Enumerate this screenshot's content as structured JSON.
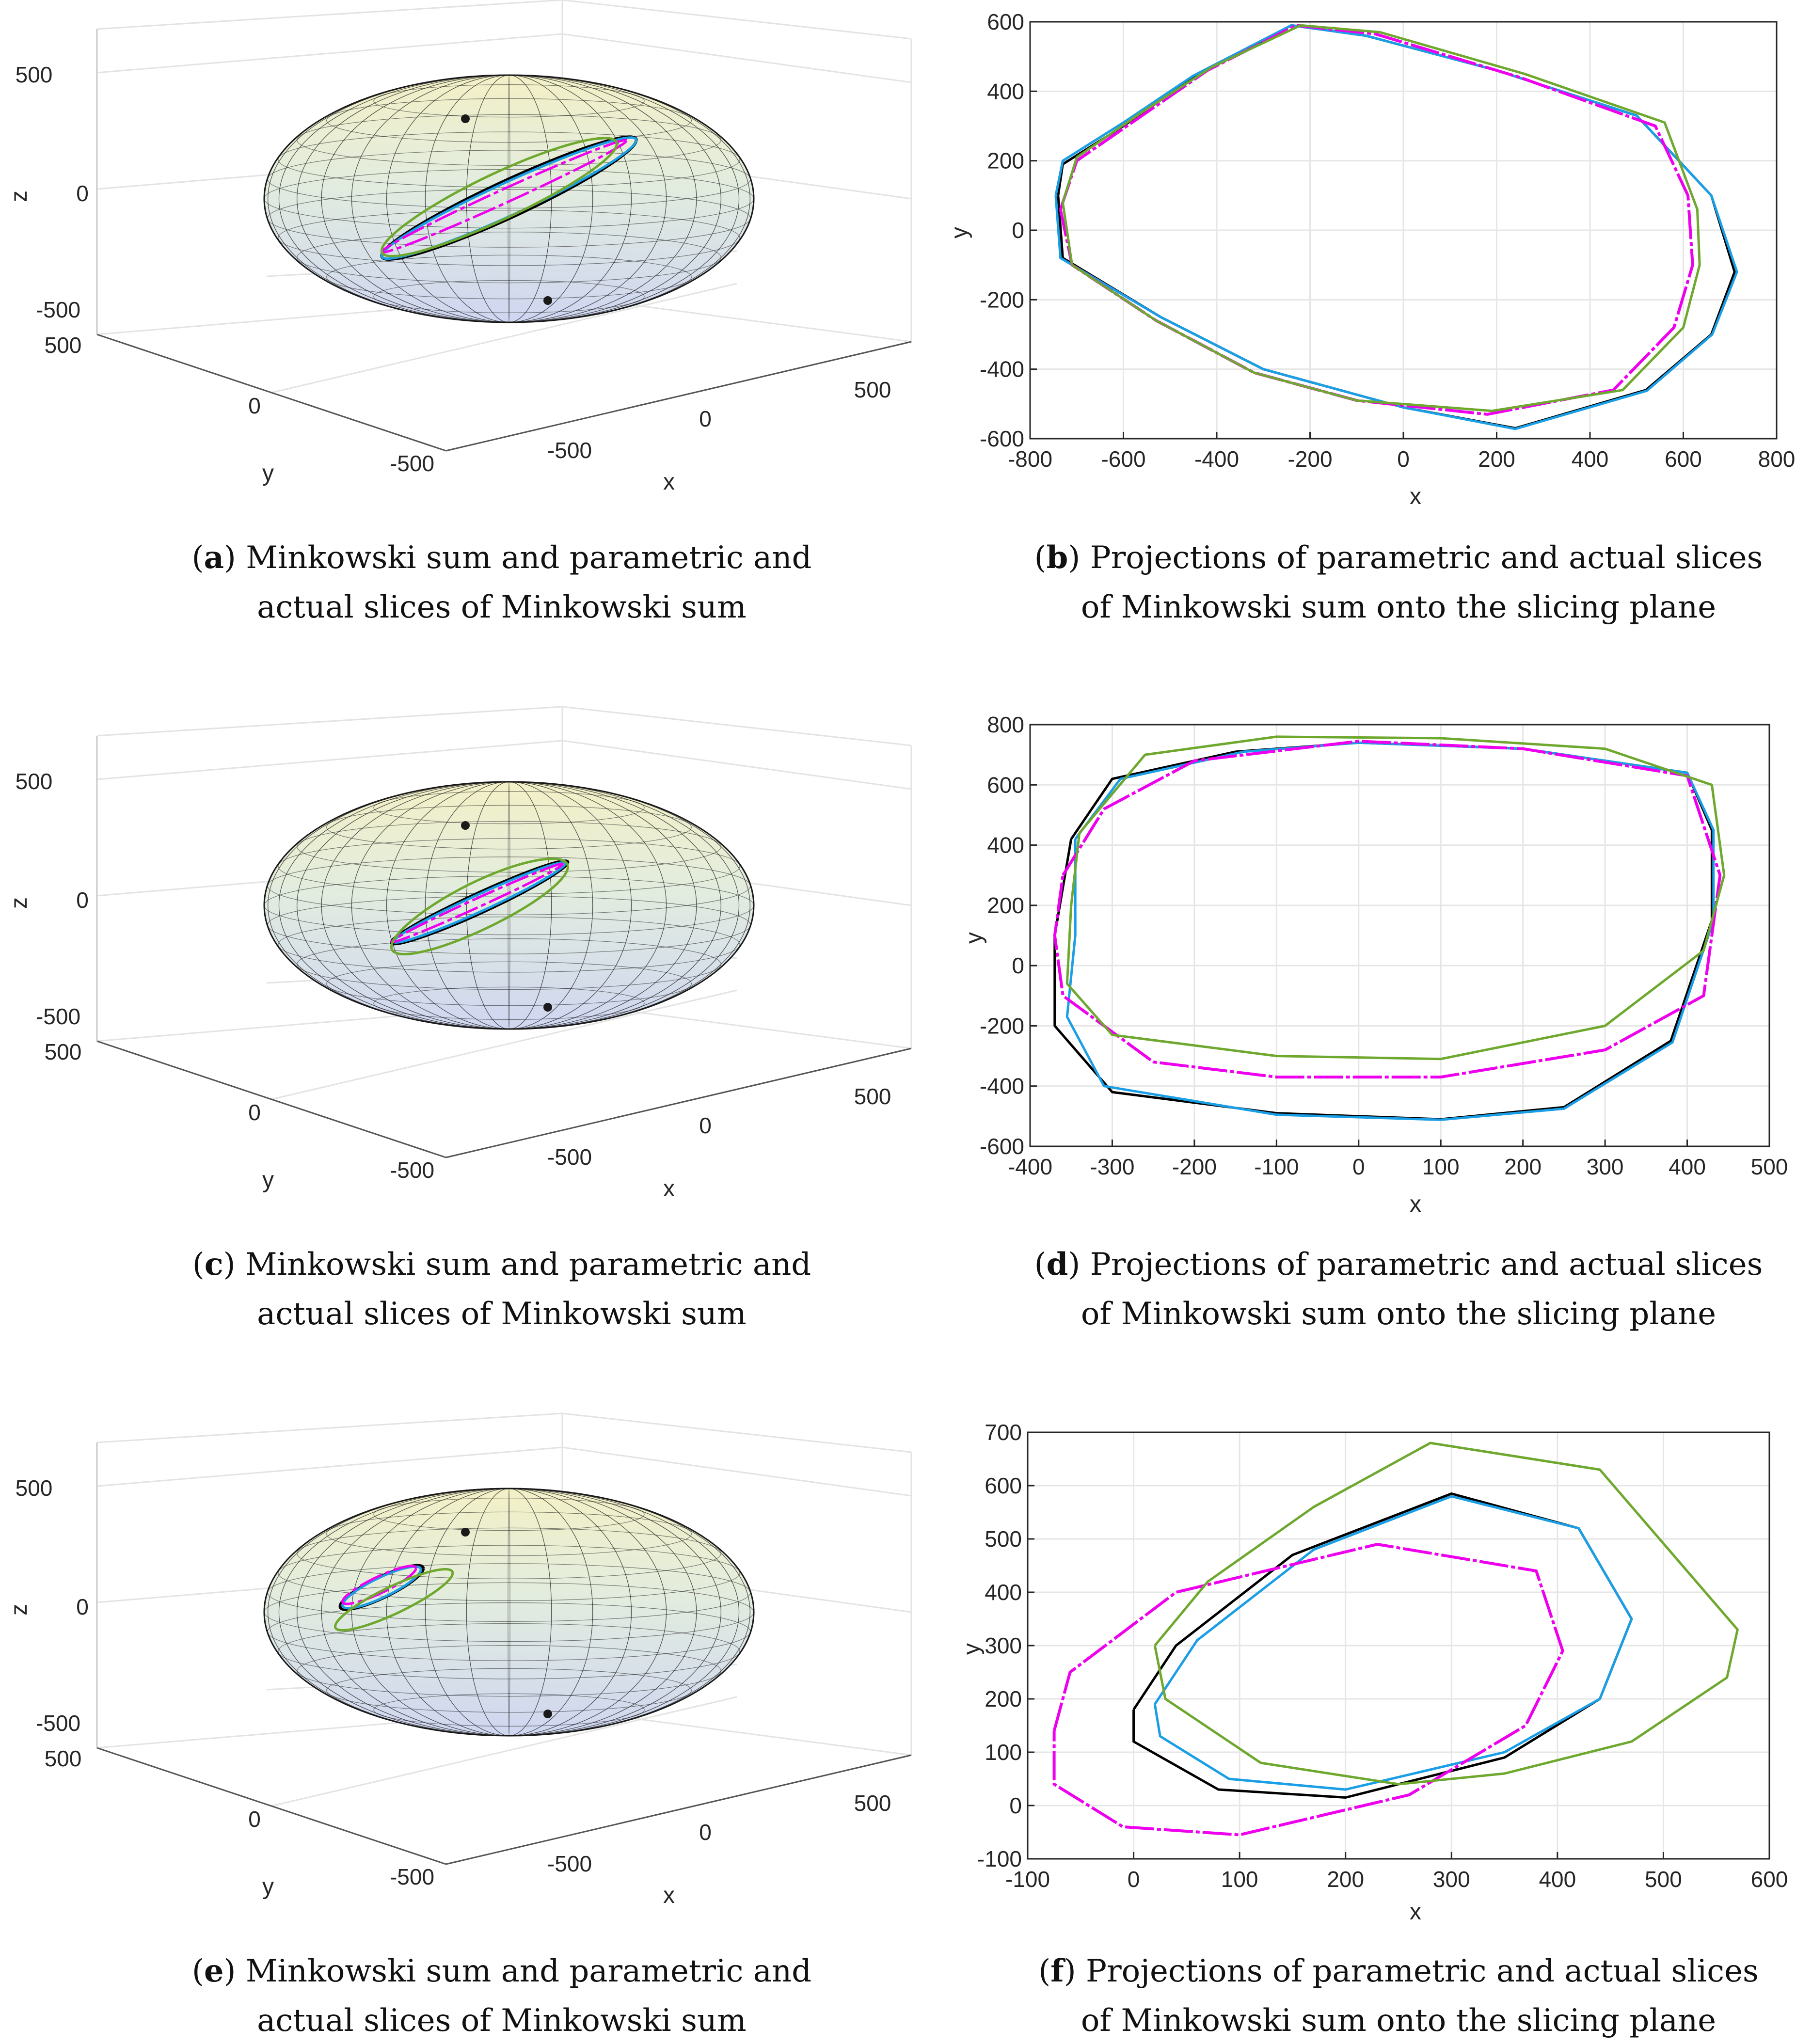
{
  "colors": {
    "black_slice": "#000000",
    "blue_slice": "#1a9ee6",
    "magenta_slice": "#ee00ee",
    "green_slice": "#6fa82e",
    "grid": "#e6e6e6",
    "wire": "#1a1a1a"
  },
  "captions": [
    {
      "letter": "a",
      "line1": "Minkowski sum and parametric and",
      "line2": "actual slices of Minkowski sum"
    },
    {
      "letter": "b",
      "line1": "Projections of parametric and actual slices",
      "line2": "of Minkowski sum onto the slicing plane"
    },
    {
      "letter": "c",
      "line1": "Minkowski sum and parametric and",
      "line2": "actual slices of Minkowski sum"
    },
    {
      "letter": "d",
      "line1": "Projections of parametric and actual slices",
      "line2": "of Minkowski sum onto the slicing plane"
    },
    {
      "letter": "e",
      "line1": "Minkowski sum and parametric and",
      "line2": "actual slices of Minkowski sum"
    },
    {
      "letter": "f",
      "line1": "Projections of parametric and actual slices",
      "line2": "of Minkowski sum onto the slicing plane"
    }
  ],
  "chart_data": [
    {
      "panel": "a",
      "type": "3d-surface",
      "xlabel": "x",
      "ylabel": "y",
      "zlabel": "z",
      "xticks": [
        "-500",
        "0",
        "500"
      ],
      "yticks": [
        "-500",
        "0",
        "500"
      ],
      "zticks": [
        "-500",
        "0",
        "500"
      ],
      "slices": [
        {
          "name": "black",
          "cx": 0.0,
          "cz": 0.0,
          "ax": 0.52,
          "ay": 0.62,
          "tilt": 0.26,
          "skew": 0.1
        },
        {
          "name": "blue",
          "cx": 0.0,
          "cz": 0.0,
          "ax": 0.52,
          "ay": 0.6,
          "tilt": 0.24,
          "skew": 0.1
        },
        {
          "name": "magenta",
          "cx": -0.02,
          "cz": 0.02,
          "ax": 0.5,
          "ay": 0.6,
          "tilt": 0.1,
          "skew": 0.0
        },
        {
          "name": "green",
          "cx": -0.04,
          "cz": 0.02,
          "ax": 0.48,
          "ay": 0.6,
          "tilt": 0.34,
          "skew": -0.1
        }
      ]
    },
    {
      "panel": "b",
      "type": "line",
      "xlabel": "x",
      "ylabel": "y",
      "xlim": [
        -800,
        800
      ],
      "ylim": [
        -600,
        600
      ],
      "xticks": [
        -800,
        -600,
        -400,
        -200,
        0,
        200,
        400,
        600,
        800
      ],
      "yticks": [
        -600,
        -400,
        -200,
        0,
        200,
        400,
        600
      ],
      "series": [
        {
          "name": "black",
          "points": [
            [
              -740,
              100
            ],
            [
              -730,
              190
            ],
            [
              -600,
              300
            ],
            [
              -450,
              440
            ],
            [
              -240,
              590
            ],
            [
              -80,
              560
            ],
            [
              200,
              460
            ],
            [
              500,
              330
            ],
            [
              660,
              100
            ],
            [
              710,
              -120
            ],
            [
              660,
              -300
            ],
            [
              520,
              -460
            ],
            [
              240,
              -570
            ],
            [
              0,
              -510
            ],
            [
              -300,
              -400
            ],
            [
              -520,
              -250
            ],
            [
              -730,
              -80
            ],
            [
              -740,
              100
            ]
          ]
        },
        {
          "name": "blue",
          "points": [
            [
              -745,
              100
            ],
            [
              -730,
              200
            ],
            [
              -600,
              310
            ],
            [
              -450,
              445
            ],
            [
              -240,
              590
            ],
            [
              -80,
              560
            ],
            [
              200,
              460
            ],
            [
              500,
              330
            ],
            [
              660,
              100
            ],
            [
              715,
              -120
            ],
            [
              662,
              -300
            ],
            [
              522,
              -462
            ],
            [
              240,
              -572
            ],
            [
              0,
              -510
            ],
            [
              -300,
              -400
            ],
            [
              -520,
              -250
            ],
            [
              -735,
              -80
            ],
            [
              -745,
              100
            ]
          ]
        },
        {
          "name": "magenta",
          "points": [
            [
              -735,
              60
            ],
            [
              -700,
              200
            ],
            [
              -560,
              330
            ],
            [
              -420,
              460
            ],
            [
              -230,
              590
            ],
            [
              -60,
              565
            ],
            [
              250,
              440
            ],
            [
              540,
              300
            ],
            [
              610,
              100
            ],
            [
              620,
              -100
            ],
            [
              580,
              -280
            ],
            [
              450,
              -460
            ],
            [
              180,
              -530
            ],
            [
              -100,
              -490
            ],
            [
              -320,
              -410
            ],
            [
              -530,
              -260
            ],
            [
              -710,
              -100
            ],
            [
              -735,
              60
            ]
          ]
        },
        {
          "name": "green",
          "points": [
            [
              -730,
              80
            ],
            [
              -700,
              210
            ],
            [
              -560,
              340
            ],
            [
              -410,
              470
            ],
            [
              -220,
              590
            ],
            [
              -50,
              570
            ],
            [
              260,
              450
            ],
            [
              560,
              310
            ],
            [
              630,
              60
            ],
            [
              635,
              -100
            ],
            [
              600,
              -280
            ],
            [
              470,
              -460
            ],
            [
              190,
              -520
            ],
            [
              -100,
              -490
            ],
            [
              -320,
              -410
            ],
            [
              -530,
              -260
            ],
            [
              -710,
              -100
            ],
            [
              -730,
              80
            ]
          ]
        }
      ]
    },
    {
      "panel": "c",
      "type": "3d-surface",
      "xlabel": "x",
      "ylabel": "y",
      "zlabel": "z",
      "xticks": [
        "-500",
        "0",
        "500"
      ],
      "yticks": [
        "-500",
        "0",
        "500"
      ],
      "zticks": [
        "-500",
        "0",
        "500"
      ],
      "slices": [
        {
          "name": "black",
          "cx": -0.12,
          "cz": 0.02,
          "ax": 0.36,
          "ay": 0.48,
          "tilt": 0.18,
          "skew": 0.1
        },
        {
          "name": "blue",
          "cx": -0.12,
          "cz": 0.02,
          "ax": 0.35,
          "ay": 0.46,
          "tilt": 0.16,
          "skew": 0.1
        },
        {
          "name": "magenta",
          "cx": -0.13,
          "cz": 0.02,
          "ax": 0.35,
          "ay": 0.48,
          "tilt": 0.08,
          "skew": 0.0
        },
        {
          "name": "green",
          "cx": -0.12,
          "cz": 0.0,
          "ax": 0.36,
          "ay": 0.5,
          "tilt": 0.42,
          "skew": -0.1
        }
      ]
    },
    {
      "panel": "d",
      "type": "line",
      "xlabel": "x",
      "ylabel": "y",
      "xlim": [
        -400,
        500
      ],
      "ylim": [
        -600,
        800
      ],
      "xticks": [
        -400,
        -300,
        -200,
        -100,
        0,
        100,
        200,
        300,
        400,
        500
      ],
      "yticks": [
        -600,
        -400,
        -200,
        0,
        200,
        400,
        600,
        800
      ],
      "series": [
        {
          "name": "black",
          "points": [
            [
              -350,
              420
            ],
            [
              -300,
              620
            ],
            [
              -150,
              710
            ],
            [
              0,
              740
            ],
            [
              200,
              720
            ],
            [
              400,
              640
            ],
            [
              430,
              450
            ],
            [
              430,
              150
            ],
            [
              380,
              -250
            ],
            [
              250,
              -470
            ],
            [
              100,
              -510
            ],
            [
              -100,
              -490
            ],
            [
              -300,
              -420
            ],
            [
              -370,
              -200
            ],
            [
              -370,
              100
            ],
            [
              -350,
              420
            ]
          ]
        },
        {
          "name": "blue",
          "points": [
            [
              -345,
              420
            ],
            [
              -290,
              620
            ],
            [
              -140,
              710
            ],
            [
              0,
              740
            ],
            [
              200,
              720
            ],
            [
              400,
              640
            ],
            [
              432,
              450
            ],
            [
              432,
              150
            ],
            [
              382,
              -255
            ],
            [
              250,
              -475
            ],
            [
              100,
              -512
            ],
            [
              -100,
              -495
            ],
            [
              -310,
              -400
            ],
            [
              -355,
              -170
            ],
            [
              -345,
              100
            ],
            [
              -345,
              420
            ]
          ]
        },
        {
          "name": "magenta",
          "points": [
            [
              -360,
              300
            ],
            [
              -310,
              520
            ],
            [
              -200,
              680
            ],
            [
              0,
              745
            ],
            [
              200,
              720
            ],
            [
              400,
              630
            ],
            [
              440,
              300
            ],
            [
              420,
              -100
            ],
            [
              300,
              -280
            ],
            [
              100,
              -370
            ],
            [
              -100,
              -370
            ],
            [
              -250,
              -320
            ],
            [
              -360,
              -100
            ],
            [
              -370,
              100
            ],
            [
              -360,
              300
            ]
          ]
        },
        {
          "name": "green",
          "points": [
            [
              -340,
              440
            ],
            [
              -260,
              700
            ],
            [
              -100,
              760
            ],
            [
              100,
              755
            ],
            [
              300,
              720
            ],
            [
              430,
              600
            ],
            [
              445,
              300
            ],
            [
              420,
              50
            ],
            [
              300,
              -200
            ],
            [
              100,
              -310
            ],
            [
              -100,
              -300
            ],
            [
              -300,
              -230
            ],
            [
              -355,
              -60
            ],
            [
              -350,
              200
            ],
            [
              -340,
              440
            ]
          ]
        }
      ]
    },
    {
      "panel": "e",
      "type": "3d-surface",
      "xlabel": "x",
      "ylabel": "y",
      "zlabel": "z",
      "xticks": [
        "-500",
        "0",
        "500"
      ],
      "yticks": [
        "-500",
        "0",
        "500"
      ],
      "zticks": [
        "-500",
        "0",
        "500"
      ],
      "slices": [
        {
          "name": "black",
          "cx": -0.52,
          "cz": 0.2,
          "ax": 0.17,
          "ay": 0.26,
          "tilt": 0.35,
          "skew": 0.0
        },
        {
          "name": "blue",
          "cx": -0.52,
          "cz": 0.2,
          "ax": 0.16,
          "ay": 0.25,
          "tilt": 0.35,
          "skew": 0.0
        },
        {
          "name": "magenta",
          "cx": -0.53,
          "cz": 0.22,
          "ax": 0.15,
          "ay": 0.26,
          "tilt": 0.28,
          "skew": 0.0
        },
        {
          "name": "green",
          "cx": -0.47,
          "cz": 0.1,
          "ax": 0.24,
          "ay": 0.3,
          "tilt": 0.4,
          "skew": 0.0
        }
      ]
    },
    {
      "panel": "f",
      "type": "line",
      "xlabel": "x",
      "ylabel": "y",
      "xlim": [
        -100,
        600
      ],
      "ylim": [
        -100,
        700
      ],
      "xticks": [
        -100,
        0,
        100,
        200,
        300,
        400,
        500,
        600
      ],
      "yticks": [
        -100,
        0,
        100,
        200,
        300,
        400,
        500,
        600,
        700
      ],
      "series": [
        {
          "name": "black",
          "points": [
            [
              0,
              180
            ],
            [
              40,
              300
            ],
            [
              150,
              470
            ],
            [
              300,
              585
            ],
            [
              420,
              520
            ],
            [
              470,
              350
            ],
            [
              440,
              200
            ],
            [
              350,
              90
            ],
            [
              200,
              15
            ],
            [
              80,
              30
            ],
            [
              0,
              120
            ],
            [
              0,
              180
            ]
          ]
        },
        {
          "name": "blue",
          "points": [
            [
              20,
              190
            ],
            [
              60,
              310
            ],
            [
              170,
              480
            ],
            [
              300,
              580
            ],
            [
              420,
              520
            ],
            [
              470,
              350
            ],
            [
              440,
              200
            ],
            [
              350,
              100
            ],
            [
              200,
              30
            ],
            [
              90,
              50
            ],
            [
              25,
              130
            ],
            [
              20,
              190
            ]
          ]
        },
        {
          "name": "magenta",
          "points": [
            [
              -75,
              140
            ],
            [
              -60,
              250
            ],
            [
              40,
              400
            ],
            [
              230,
              490
            ],
            [
              380,
              440
            ],
            [
              405,
              290
            ],
            [
              370,
              150
            ],
            [
              260,
              20
            ],
            [
              100,
              -55
            ],
            [
              -10,
              -40
            ],
            [
              -75,
              40
            ],
            [
              -75,
              140
            ]
          ]
        },
        {
          "name": "green",
          "points": [
            [
              20,
              300
            ],
            [
              70,
              420
            ],
            [
              170,
              560
            ],
            [
              280,
              680
            ],
            [
              440,
              630
            ],
            [
              570,
              330
            ],
            [
              560,
              240
            ],
            [
              470,
              120
            ],
            [
              350,
              60
            ],
            [
              250,
              40
            ],
            [
              120,
              80
            ],
            [
              30,
              200
            ],
            [
              20,
              300
            ]
          ]
        }
      ]
    }
  ]
}
